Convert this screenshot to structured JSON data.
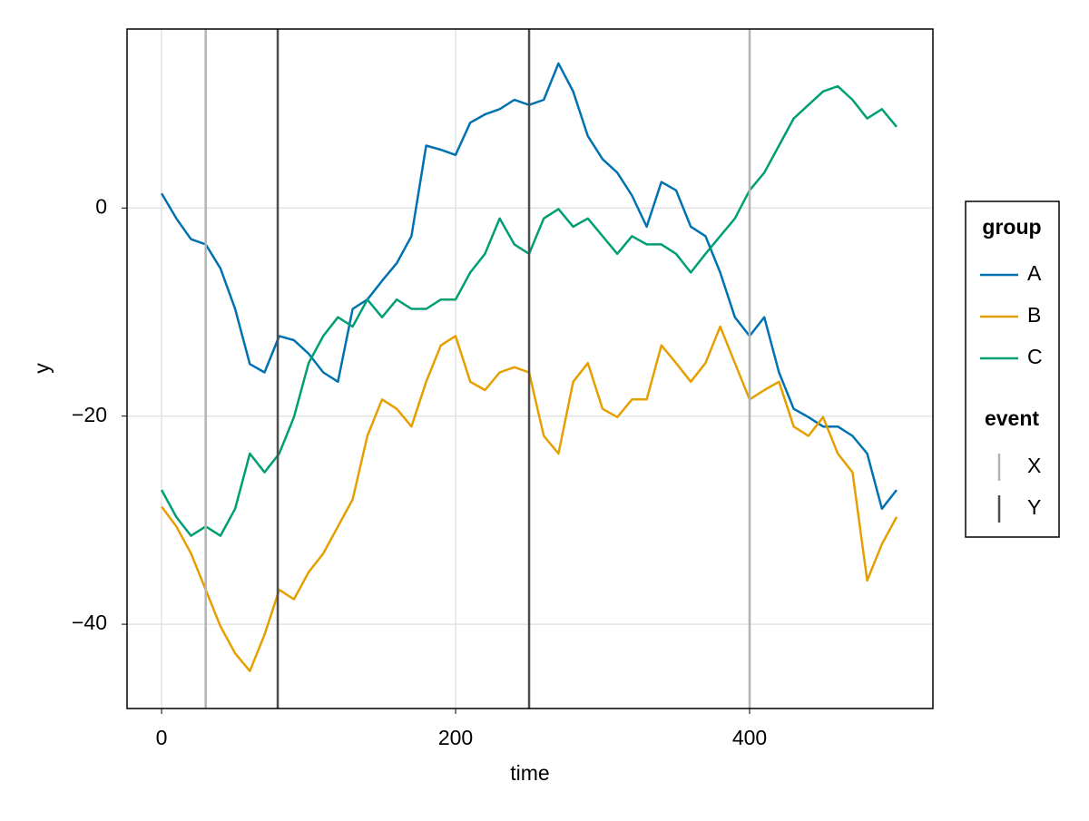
{
  "chart_data": {
    "type": "line",
    "x_label": "time",
    "y_label": "y",
    "x": [
      0,
      10,
      20,
      30,
      40,
      50,
      60,
      70,
      80,
      90,
      100,
      110,
      120,
      130,
      140,
      150,
      160,
      170,
      180,
      190,
      200,
      210,
      220,
      230,
      240,
      250,
      260,
      270,
      280,
      290,
      300,
      310,
      320,
      330,
      340,
      350,
      360,
      370,
      380,
      390,
      400,
      410,
      420,
      430,
      440,
      450,
      460,
      470,
      480,
      490,
      500
    ],
    "series": [
      {
        "name": "A",
        "color": "#0072b2",
        "values": [
          1.4,
          -1,
          -3,
          -3.5,
          -5.8,
          -9.7,
          -15,
          -15.8,
          -12.3,
          -12.7,
          -14,
          -15.8,
          -16.7,
          -9.7,
          -8.8,
          -7,
          -5.3,
          -2.7,
          6,
          5.6,
          5.1,
          8.2,
          9,
          9.5,
          10.4,
          9.9,
          10.4,
          13.9,
          11.2,
          6.9,
          4.7,
          3.4,
          1.2,
          -1.8,
          2.5,
          1.7,
          -1.8,
          -2.7,
          -6.2,
          -10.5,
          -12.3,
          -10.5,
          -15.8,
          -19.3,
          -20.1,
          -21,
          -21,
          -21.9,
          -23.6,
          -28.9,
          -27.1
        ]
      },
      {
        "name": "B",
        "color": "#e69f00",
        "values": [
          -28.7,
          -30.6,
          -33.2,
          -36.7,
          -40.2,
          -42.8,
          -44.5,
          -41,
          -36.7,
          -37.6,
          -35,
          -33.2,
          -30.6,
          -28,
          -21.9,
          -18.4,
          -19.3,
          -21,
          -16.7,
          -13.2,
          -12.3,
          -16.7,
          -17.5,
          -15.8,
          -15.3,
          -15.8,
          -21.9,
          -23.6,
          -16.7,
          -14.9,
          -19.3,
          -20.1,
          -18.4,
          -18.4,
          -13.2,
          -14.9,
          -16.7,
          -14.9,
          -11.4,
          -14.9,
          -18.4,
          -17.5,
          -16.7,
          -21,
          -21.9,
          -20.1,
          -23.6,
          -25.4,
          -35.8,
          -32.3,
          -29.7
        ]
      },
      {
        "name": "C",
        "color": "#009e73",
        "values": [
          -27.1,
          -29.7,
          -31.5,
          -30.6,
          -31.5,
          -28.9,
          -23.6,
          -25.4,
          -23.6,
          -20.1,
          -14.9,
          -12.3,
          -10.5,
          -11.4,
          -8.8,
          -10.5,
          -8.8,
          -9.7,
          -9.7,
          -8.8,
          -8.8,
          -6.2,
          -4.4,
          -1,
          -3.5,
          -4.4,
          -1,
          -0.1,
          -1.8,
          -1,
          -2.7,
          -4.4,
          -2.7,
          -3.5,
          -3.5,
          -4.4,
          -6.2,
          -4.4,
          -2.7,
          -1,
          1.7,
          3.4,
          6,
          8.6,
          9.9,
          11.2,
          11.7,
          10.4,
          8.6,
          9.5,
          7.8
        ]
      }
    ],
    "legend_title": "group",
    "events_title": "event",
    "events": [
      {
        "name": "X",
        "color": "#b3b3b3",
        "x": [
          30,
          400
        ]
      },
      {
        "name": "Y",
        "color": "#4d4d4d",
        "x": [
          79,
          250
        ]
      }
    ],
    "xlim": [
      -23.5,
      524.7
    ],
    "xticks": [
      0,
      200,
      400
    ],
    "ylim": [
      -48.1,
      17.2
    ],
    "yticks": [
      {
        "value": -40,
        "label": "−40"
      },
      {
        "value": -20,
        "label": "−20"
      },
      0
    ],
    "grid": true,
    "legend_position": "right"
  }
}
